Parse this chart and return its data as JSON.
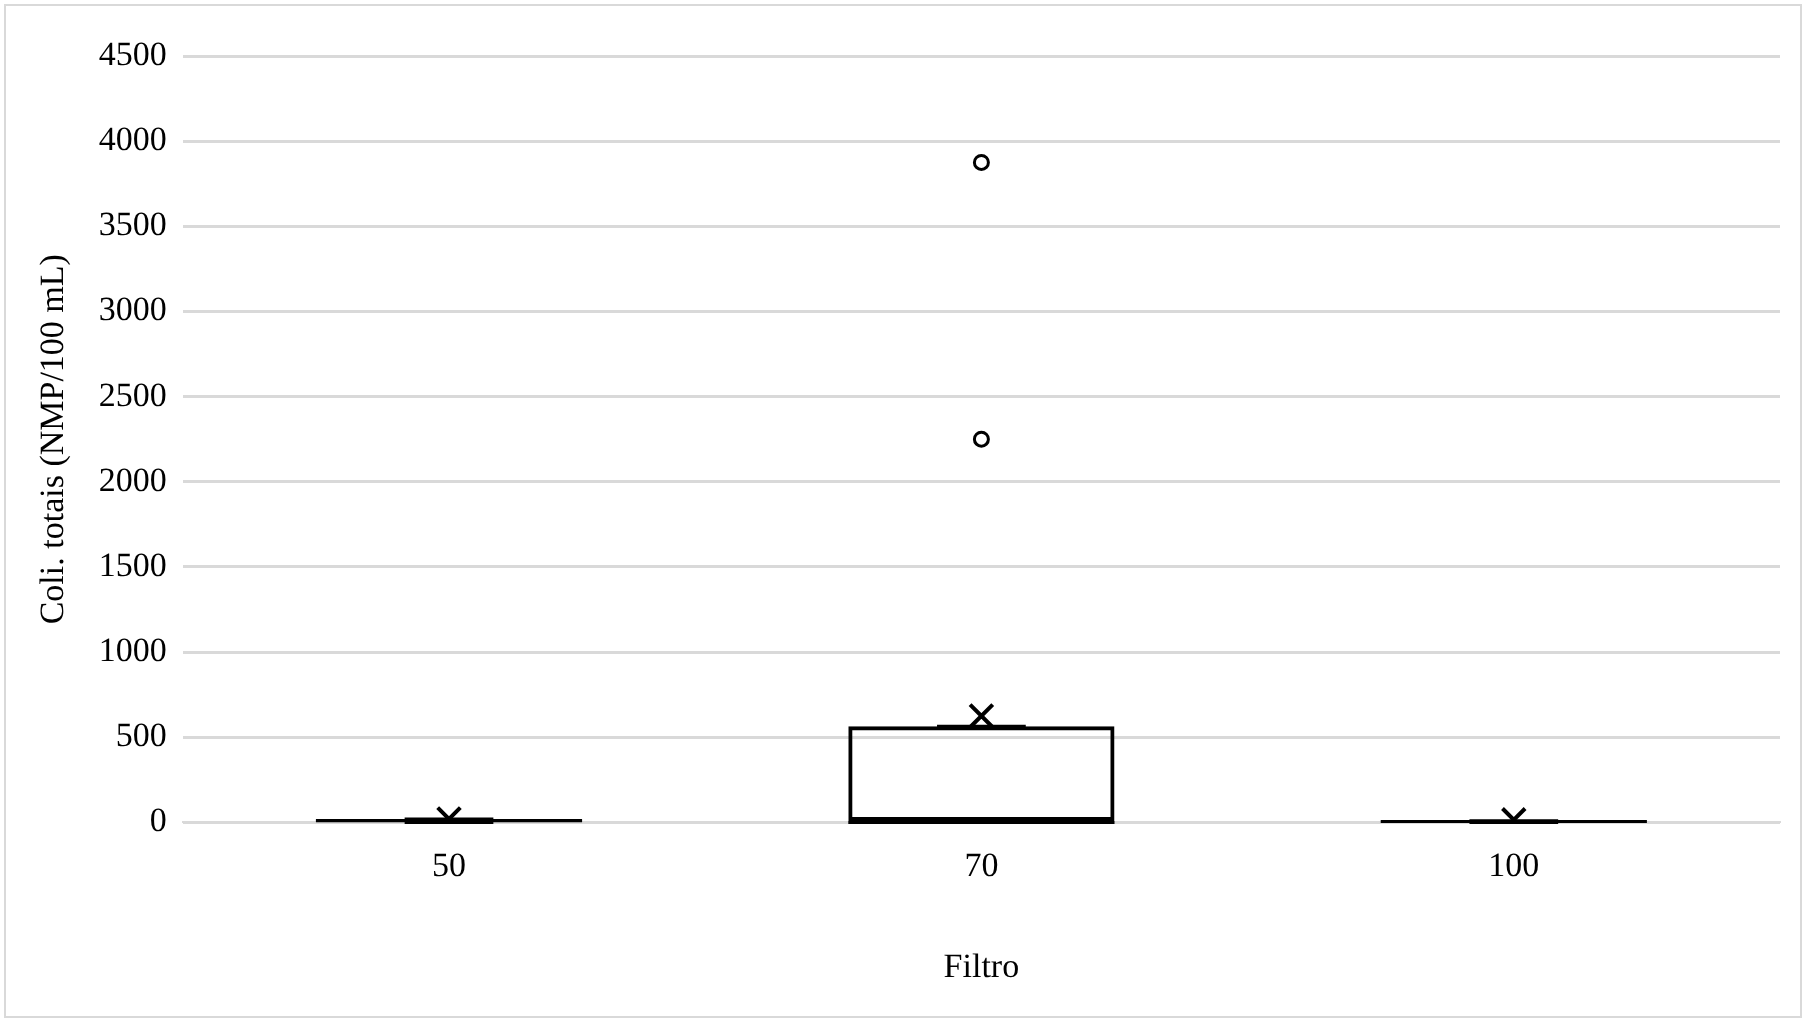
{
  "chart_data": {
    "type": "box",
    "xlabel": "Filtro",
    "ylabel": "Coli. totais (NMP/100 mL)",
    "categories": [
      "50",
      "70",
      "100"
    ],
    "boxes": [
      {
        "low": 0,
        "q1": 0,
        "median": 10,
        "q3": 20,
        "high": 20,
        "mean": 20
      },
      {
        "low": 0,
        "q1": 0,
        "median": 0,
        "q3": 565,
        "high": 565,
        "mean": 625,
        "outliers": [
          2250,
          3875
        ]
      },
      {
        "low": 0,
        "q1": 0,
        "median": 5,
        "q3": 10,
        "high": 10,
        "mean": 15
      }
    ],
    "color": "#000000",
    "ylim": [
      0,
      4500
    ],
    "yticks": [
      0,
      500,
      1000,
      1500,
      2000,
      2500,
      3000,
      3500,
      4000,
      4500
    ],
    "grid": "y",
    "legend": false
  }
}
